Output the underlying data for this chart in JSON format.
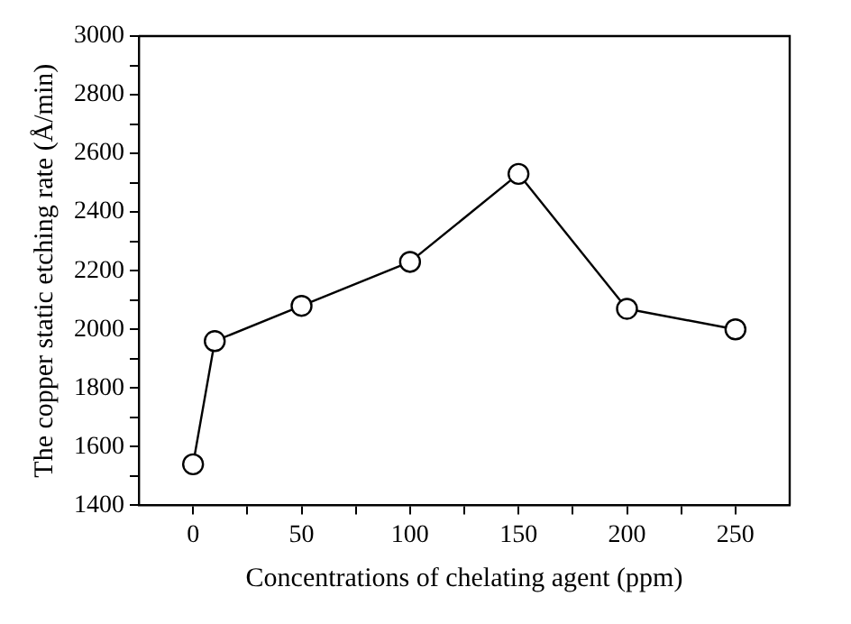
{
  "chart_data": {
    "type": "line",
    "xlabel": "Concentrations of chelating agent (ppm)",
    "ylabel": "The copper static etching rate (Å/min)",
    "x": [
      0,
      10,
      50,
      100,
      150,
      200,
      250
    ],
    "series": [
      {
        "color": "#000000",
        "values": [
          1540,
          1960,
          2080,
          2230,
          2530,
          2070,
          2000
        ]
      }
    ],
    "xlim": [
      -25,
      275
    ],
    "xticks": [
      0,
      {
        "value": 25,
        "label": null
      },
      50,
      {
        "value": 75,
        "label": null
      },
      100,
      {
        "value": 125,
        "label": null
      },
      150,
      {
        "value": 175,
        "label": null
      },
      200,
      {
        "value": 225,
        "label": null
      },
      250
    ],
    "ylim": [
      1400,
      3000
    ],
    "yticks": [
      1400,
      {
        "value": 1500,
        "label": null
      },
      1600,
      {
        "value": 1700,
        "label": null
      },
      1800,
      {
        "value": 1900,
        "label": null
      },
      2000,
      {
        "value": 2100,
        "label": null
      },
      2200,
      {
        "value": 2300,
        "label": null
      },
      2400,
      {
        "value": 2500,
        "label": null
      },
      2600,
      {
        "value": 2700,
        "label": null
      },
      2800,
      {
        "value": 2900,
        "label": null
      },
      3000
    ],
    "grid": false,
    "legend": false,
    "marker": "circle",
    "line_style": "solid"
  }
}
